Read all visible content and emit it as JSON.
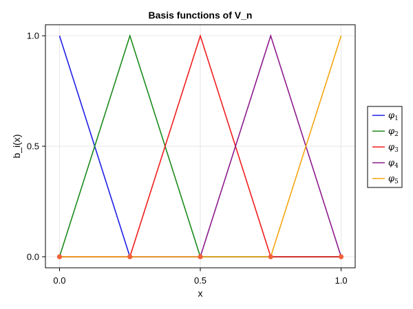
{
  "chart_data": {
    "type": "line",
    "title": "Basis functions of V_n",
    "xlabel": "x",
    "ylabel": "b_i(x)",
    "xlim": [
      -0.05,
      1.05
    ],
    "ylim": [
      -0.05,
      1.05
    ],
    "xticks": [
      0.0,
      0.5,
      1.0
    ],
    "xtick_labels": [
      "0.0",
      "0.5",
      "1.0"
    ],
    "yticks": [
      0.0,
      0.5,
      1.0
    ],
    "ytick_labels": [
      "0.0",
      "0.5",
      "1.0"
    ],
    "grid": true,
    "legend_position": "outside-right",
    "nodes": [
      0.0,
      0.25,
      0.5,
      0.75,
      1.0
    ],
    "node_color": "#f2613a",
    "series": [
      {
        "name": "φ",
        "subscript": "1",
        "color": "#1f1fe6",
        "x": [
          0.0,
          0.25,
          0.5,
          0.75,
          1.0
        ],
        "y": [
          1,
          0,
          0,
          0,
          0
        ]
      },
      {
        "name": "φ",
        "subscript": "2",
        "color": "#1a8a1a",
        "x": [
          0.0,
          0.25,
          0.5,
          0.75,
          1.0
        ],
        "y": [
          0,
          1,
          0,
          0,
          0
        ]
      },
      {
        "name": "φ",
        "subscript": "3",
        "color": "#f01c1c",
        "x": [
          0.0,
          0.25,
          0.5,
          0.75,
          1.0
        ],
        "y": [
          0,
          0,
          1,
          0,
          0
        ]
      },
      {
        "name": "φ",
        "subscript": "4",
        "color": "#8c1a8c",
        "x": [
          0.0,
          0.25,
          0.5,
          0.75,
          1.0
        ],
        "y": [
          0,
          0,
          0,
          1,
          0
        ]
      },
      {
        "name": "φ",
        "subscript": "5",
        "color": "#f5a50f",
        "x": [
          0.0,
          0.25,
          0.5,
          0.75,
          1.0
        ],
        "y": [
          0,
          0,
          0,
          0,
          1
        ]
      }
    ]
  }
}
